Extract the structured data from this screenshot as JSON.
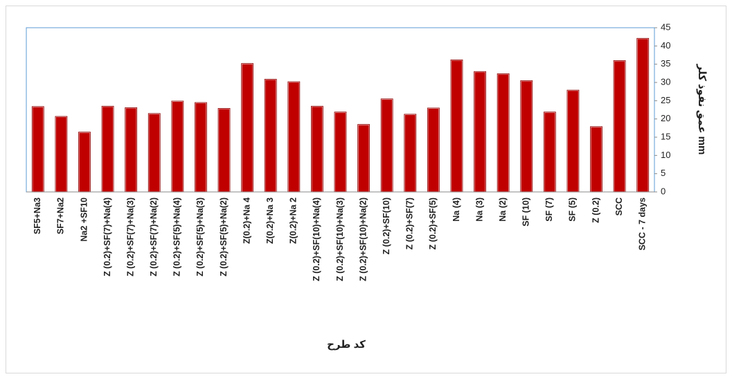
{
  "chart_data": {
    "type": "bar",
    "x_label": "کد طرح",
    "y_label": "عمق نفوذ کلر mm",
    "categories": [
      "SF5+Na3",
      "SF7+Na2",
      "Na2 +SF10",
      "Z (0.2)+SF(7)+Na(4)",
      "Z (0.2)+SF(7)+Na(3)",
      "Z (0.2)+SF(7)+Na(2)",
      "Z (0.2)+SF(5)+Na(4)",
      "Z (0.2)+SF(5)+Na(3)",
      "Z (0.2)+SF(5)+Na(2)",
      "Z(0.2)+Na 4",
      "Z(0.2)+Na 3",
      "Z(0.2)+Na 2",
      "Z (0.2)+SF(10)+Na(4)",
      "Z (0.2)+SF(10)+Na(3)",
      "Z (0.2)+SF(10)+Na(2)",
      "Z (0.2)+SF(10)",
      "Z (0.2)+SF(7)",
      "Z (0.2)+SF(5)",
      "Na (4)",
      "Na (3)",
      "Na (2)",
      "SF (10)",
      "SF (7)",
      "SF (5)",
      "Z (0.2)",
      "SCC",
      "SCC - 7 days"
    ],
    "values": [
      23.3,
      20.6,
      16.3,
      23.4,
      23.0,
      21.4,
      24.8,
      24.4,
      22.8,
      35.1,
      30.8,
      30.1,
      23.4,
      21.8,
      18.4,
      25.4,
      21.2,
      22.9,
      36.1,
      32.9,
      32.3,
      30.4,
      21.8,
      27.8,
      17.8,
      35.9,
      42.0
    ],
    "color": "#c00000",
    "ylim": [
      0,
      45
    ],
    "yticks": [
      0,
      5,
      10,
      15,
      20,
      25,
      30,
      35,
      40,
      45
    ],
    "y_axis_side": "right"
  }
}
